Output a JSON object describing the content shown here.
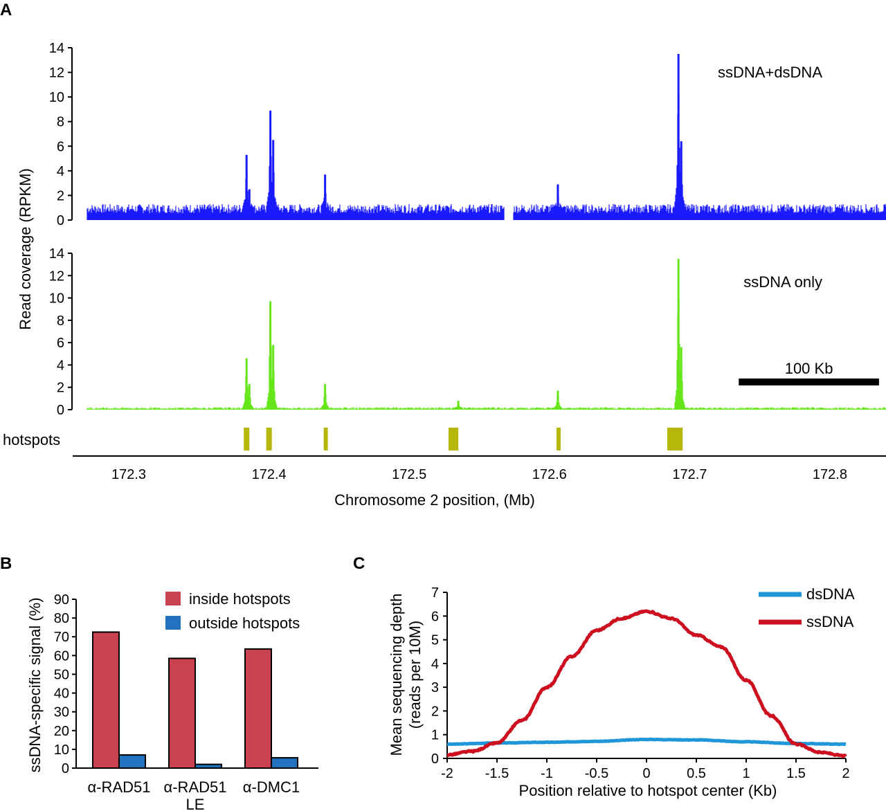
{
  "chart_data": [
    {
      "panel": "A",
      "type": "area",
      "ylabel": "Read coverage (RPKM)",
      "xlabel": "Chromosome 2 position, (Mb)",
      "x_ticks": [
        "172.3",
        "172.4",
        "172.5",
        "172.6",
        "172.7",
        "172.8"
      ],
      "x_tick_values": [
        172.3,
        172.4,
        172.5,
        172.6,
        172.7,
        172.8
      ],
      "xlim": [
        172.26,
        172.84
      ],
      "ylim": [
        0,
        14
      ],
      "y_ticks": [
        "0",
        "2",
        "4",
        "6",
        "8",
        "10",
        "12",
        "14"
      ],
      "y_tick_values": [
        0,
        2,
        4,
        6,
        8,
        10,
        12,
        14
      ],
      "tracks": [
        {
          "name": "ssDNA+dsDNA",
          "color": "#1a1aff",
          "baseline": 1.0,
          "gaps": [
            [
              172.568,
              172.574
            ]
          ],
          "peaks": [
            {
              "x": 172.384,
              "y": 5.3
            },
            {
              "x": 172.386,
              "y": 2.5
            },
            {
              "x": 172.401,
              "y": 8.9
            },
            {
              "x": 172.403,
              "y": 6.5
            },
            {
              "x": 172.44,
              "y": 3.7
            },
            {
              "x": 172.606,
              "y": 2.9
            },
            {
              "x": 172.692,
              "y": 13.5
            },
            {
              "x": 172.694,
              "y": 6.4
            }
          ]
        },
        {
          "name": "ssDNA only",
          "color": "#66e61a",
          "baseline": 0.15,
          "gaps": [],
          "peaks": [
            {
              "x": 172.384,
              "y": 4.6
            },
            {
              "x": 172.386,
              "y": 2.3
            },
            {
              "x": 172.401,
              "y": 9.7
            },
            {
              "x": 172.403,
              "y": 5.8
            },
            {
              "x": 172.44,
              "y": 2.3
            },
            {
              "x": 172.535,
              "y": 0.8
            },
            {
              "x": 172.606,
              "y": 1.7
            },
            {
              "x": 172.692,
              "y": 13.5
            },
            {
              "x": 172.694,
              "y": 5.6
            }
          ]
        }
      ],
      "hotspots_label": "hotspots",
      "hotspot_color": "#b5b80a",
      "hotspots": [
        [
          172.382,
          172.386
        ],
        [
          172.398,
          172.402
        ],
        [
          172.439,
          172.441
        ],
        [
          172.528,
          172.535
        ],
        [
          172.605,
          172.608
        ],
        [
          172.684,
          172.695
        ]
      ],
      "scale_bar": {
        "label": "100 Kb",
        "start": 172.735,
        "end": 172.835
      }
    },
    {
      "panel": "B",
      "type": "bar",
      "ylabel": "ssDNA-specific signal (%)",
      "categories": [
        "α-RAD51",
        "α-RAD51 LE",
        "α-DMC1"
      ],
      "series": [
        {
          "name": "inside hotspots",
          "color": "#c8434f",
          "values": [
            72.5,
            58.5,
            63.5
          ]
        },
        {
          "name": "outside hotspots",
          "color": "#2272bf",
          "values": [
            7,
            2,
            5.5
          ]
        }
      ],
      "ylim": [
        0,
        90
      ],
      "y_ticks": [
        "0",
        "10",
        "20",
        "30",
        "40",
        "50",
        "60",
        "70",
        "80",
        "90"
      ],
      "y_tick_values": [
        0,
        10,
        20,
        30,
        40,
        50,
        60,
        70,
        80,
        90
      ]
    },
    {
      "panel": "C",
      "type": "line",
      "ylabel_line1": "Mean sequencing depth",
      "ylabel_line2": "(reads per 10M)",
      "xlabel": "Position relative to hotspot center (Kb)",
      "xlim": [
        -2,
        2
      ],
      "ylim": [
        0,
        7
      ],
      "x_ticks": [
        "-2",
        "-1.5",
        "-1",
        "-0.5",
        "0",
        "0.5",
        "1",
        "1.5",
        "2"
      ],
      "x_tick_values": [
        -2,
        -1.5,
        -1,
        -0.5,
        0,
        0.5,
        1,
        1.5,
        2
      ],
      "y_ticks": [
        "0",
        "1",
        "2",
        "3",
        "4",
        "5",
        "6",
        "7"
      ],
      "y_tick_values": [
        0,
        1,
        2,
        3,
        4,
        5,
        6,
        7
      ],
      "series": [
        {
          "name": "dsDNA",
          "color": "#1e96d8",
          "x": [
            -2,
            -1.5,
            -1,
            -0.5,
            0,
            0.5,
            1,
            1.5,
            2
          ],
          "y": [
            0.6,
            0.65,
            0.68,
            0.72,
            0.8,
            0.78,
            0.7,
            0.63,
            0.6
          ]
        },
        {
          "name": "ssDNA",
          "color": "#cc1020",
          "x": [
            -2,
            -1.75,
            -1.5,
            -1.25,
            -1,
            -0.75,
            -0.5,
            -0.25,
            0,
            0.25,
            0.5,
            0.75,
            1,
            1.25,
            1.5,
            1.75,
            2
          ],
          "y": [
            0.15,
            0.3,
            0.65,
            1.6,
            3.0,
            4.3,
            5.4,
            5.9,
            6.2,
            5.9,
            5.2,
            4.7,
            3.3,
            1.8,
            0.6,
            0.25,
            0.1
          ]
        }
      ]
    }
  ],
  "panel_labels": {
    "a": "A",
    "b": "B",
    "c": "C"
  }
}
